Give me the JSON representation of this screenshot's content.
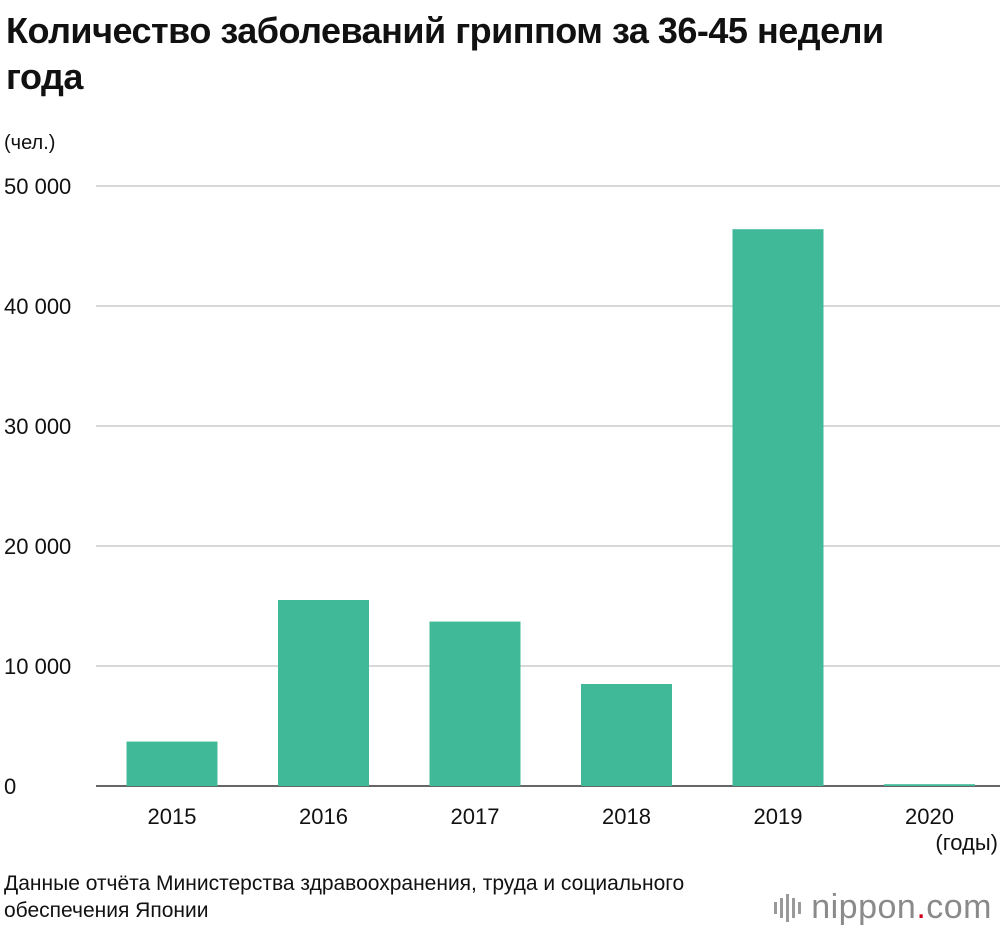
{
  "chart_data": {
    "type": "bar",
    "title": "Количество заболеваний гриппом за 36-45 недели года",
    "ylabel": "(чел.)",
    "xlabel": "(годы)",
    "categories": [
      "2015",
      "2016",
      "2017",
      "2018",
      "2019",
      "2020"
    ],
    "values": [
      3700,
      15500,
      13700,
      8500,
      46400,
      150
    ],
    "ylim": [
      0,
      50000
    ],
    "yticks": [
      0,
      10000,
      20000,
      30000,
      40000,
      50000
    ],
    "ytick_labels": [
      "0",
      "10 000",
      "20 000",
      "30 000",
      "40 000",
      "50 000"
    ],
    "grid": true,
    "legend": "none",
    "bar_color": "#40b999",
    "grid_color": "#cccccc"
  },
  "source": "Данные отчёта Министерства здравоохранения, труда и социального обеспечения Японии",
  "logo": {
    "name": "nippon",
    "dot": ".",
    "suffix": "com",
    "icon": "nippon-logo-icon"
  }
}
